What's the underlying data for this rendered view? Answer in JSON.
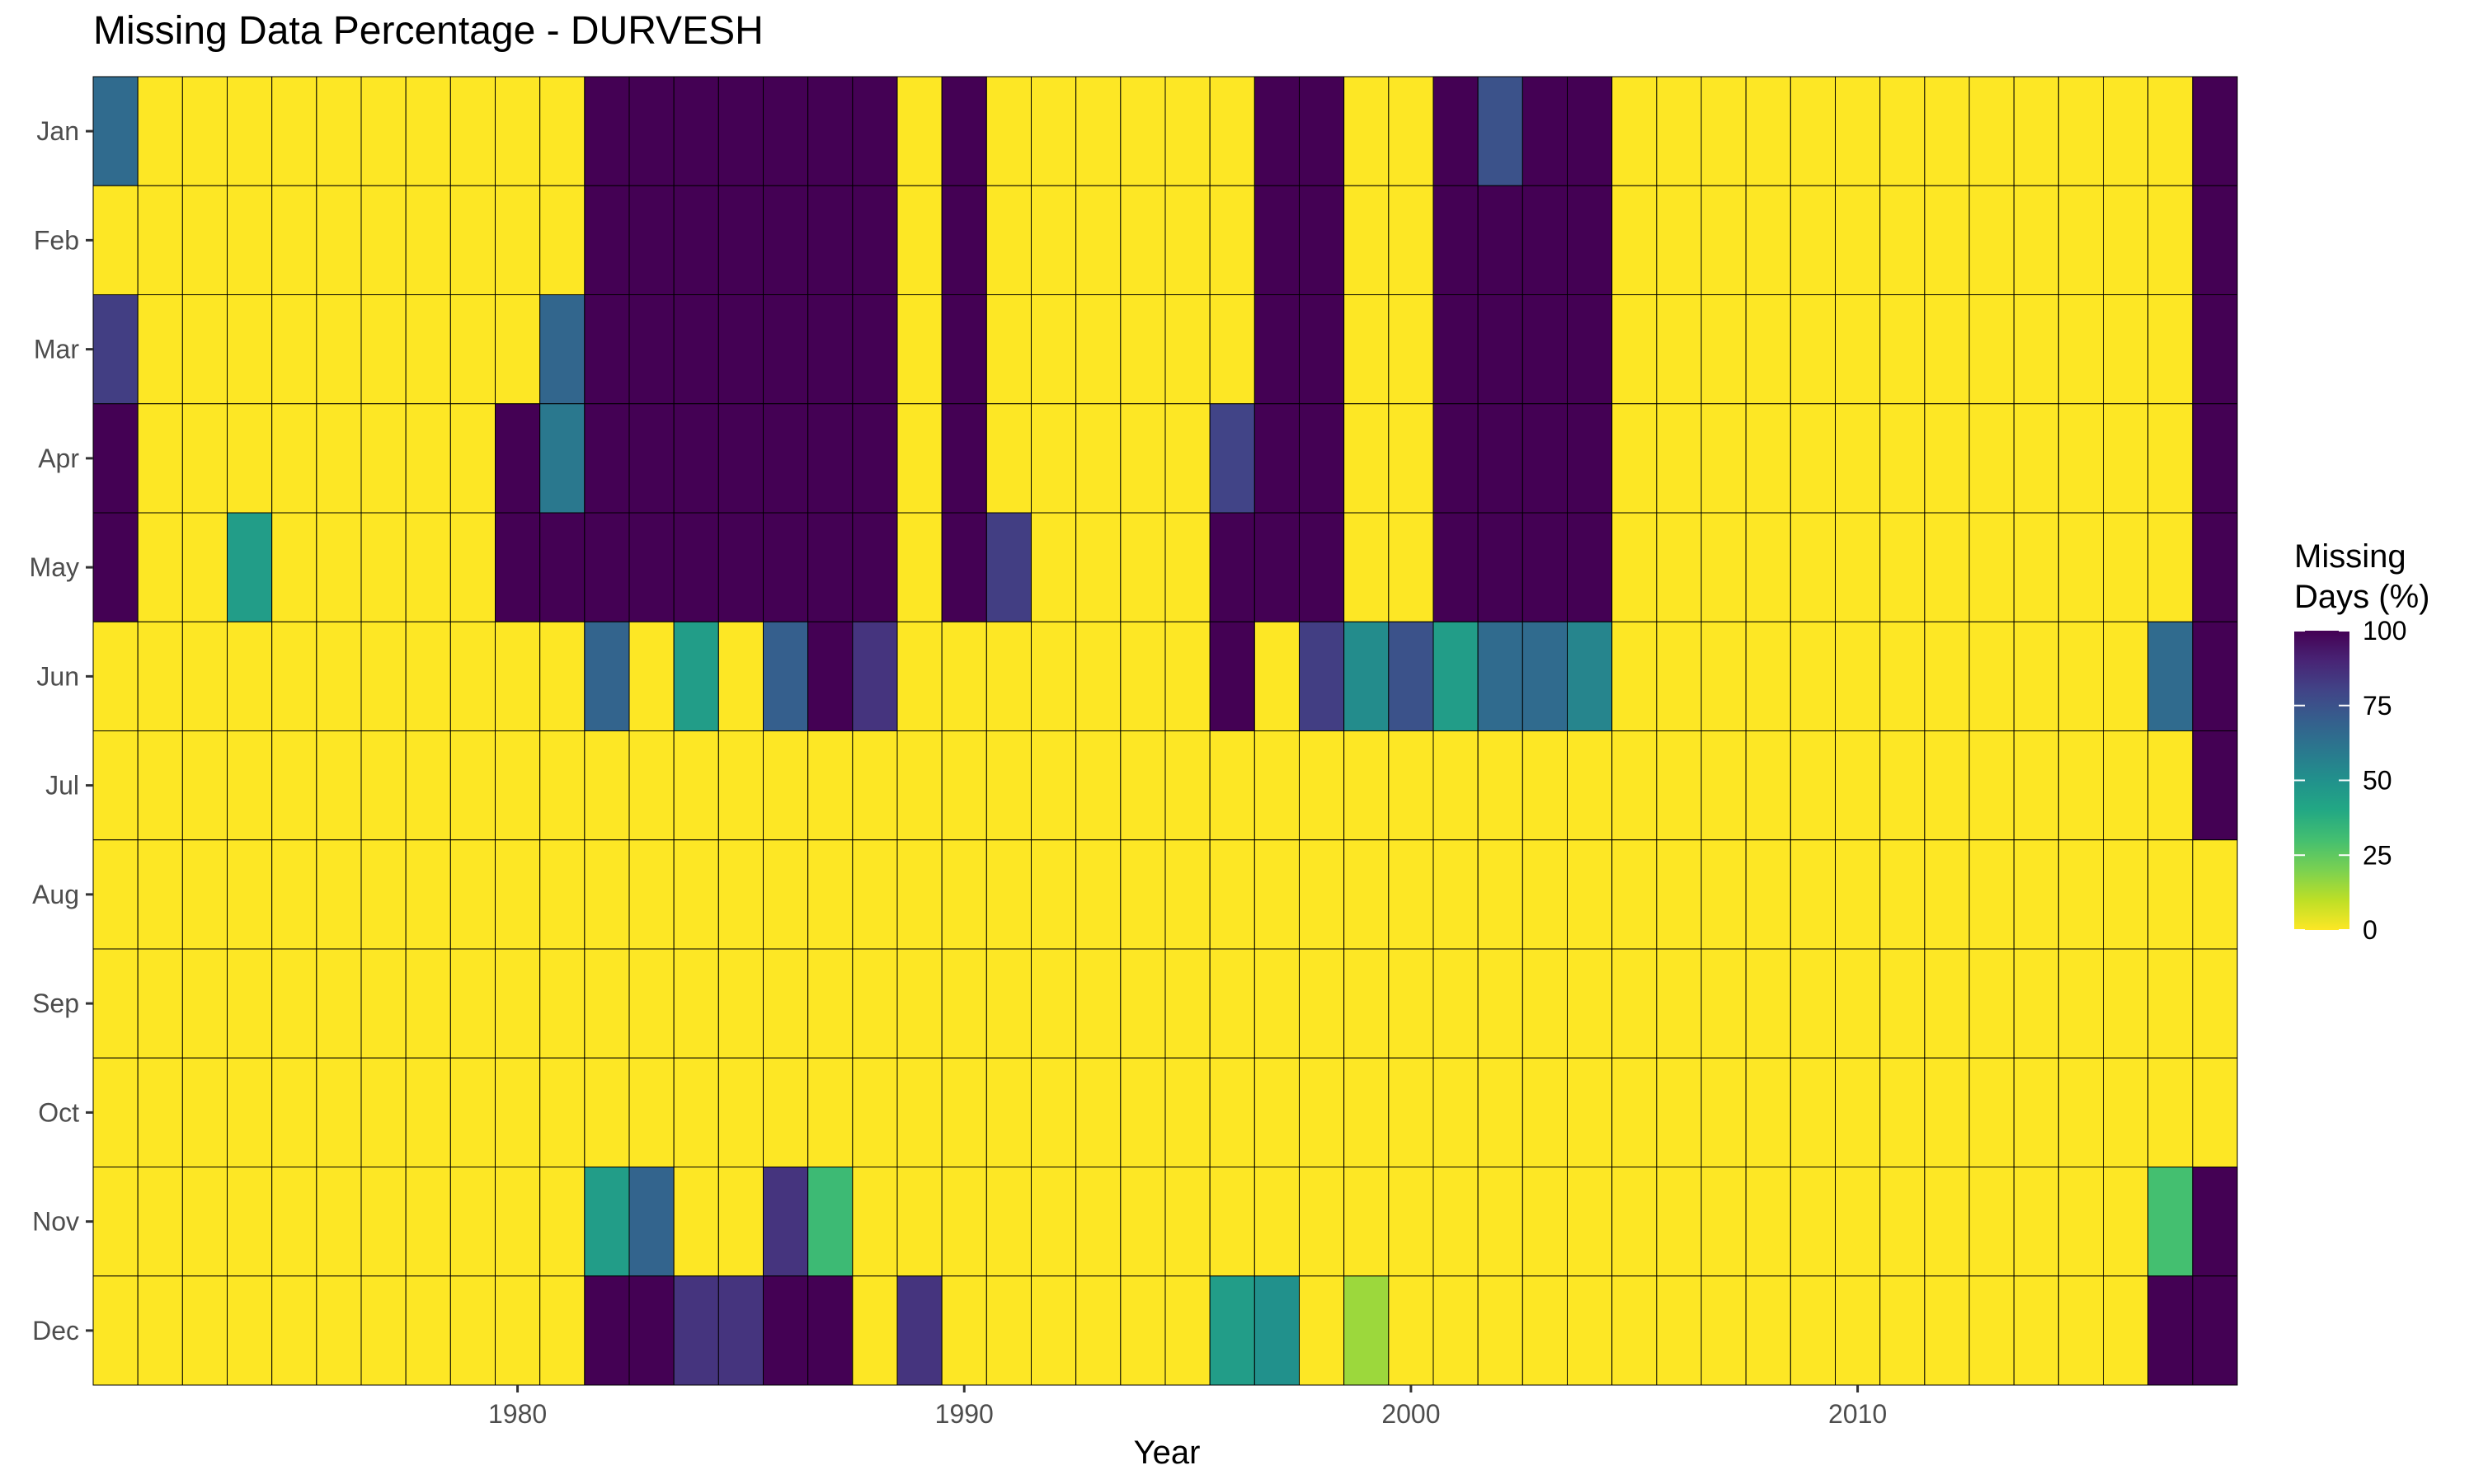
{
  "chart_data": {
    "type": "heatmap",
    "title": "Missing Data Percentage - DURVESH",
    "xlabel": "Year",
    "ylabel": "",
    "x_first_year": 1971,
    "x_last_year": 2018,
    "x_ticks": [
      1980,
      1990,
      2000,
      2010
    ],
    "months": [
      "Jan",
      "Feb",
      "Mar",
      "Apr",
      "May",
      "Jun",
      "Jul",
      "Aug",
      "Sep",
      "Oct",
      "Nov",
      "Dec"
    ],
    "color_scale": "viridis (reversed)",
    "legend": {
      "title_lines": [
        "Missing",
        "Days (%)"
      ],
      "ticks": [
        0,
        25,
        50,
        75,
        100
      ],
      "range": [
        0,
        100
      ],
      "placement": "right"
    },
    "colors": {
      "low": "#fde725",
      "high": "#440154",
      "grid_line": "#000000"
    },
    "note_default_value": 0,
    "cells": [
      {
        "year": 1971,
        "month": "Jan",
        "value": 65
      },
      {
        "year": 1971,
        "month": "Mar",
        "value": 82
      },
      {
        "year": 1971,
        "month": "Apr",
        "value": 100
      },
      {
        "year": 1971,
        "month": "May",
        "value": 100
      },
      {
        "year": 1974,
        "month": "May",
        "value": 45
      },
      {
        "year": 1980,
        "month": "Apr",
        "value": 100
      },
      {
        "year": 1980,
        "month": "May",
        "value": 100
      },
      {
        "year": 1981,
        "month": "Mar",
        "value": 67
      },
      {
        "year": 1981,
        "month": "Apr",
        "value": 60
      },
      {
        "year": 1981,
        "month": "May",
        "value": 100
      },
      {
        "year": 1982,
        "month": "Jan",
        "value": 100
      },
      {
        "year": 1982,
        "month": "Feb",
        "value": 100
      },
      {
        "year": 1982,
        "month": "Mar",
        "value": 100
      },
      {
        "year": 1982,
        "month": "Apr",
        "value": 100
      },
      {
        "year": 1982,
        "month": "May",
        "value": 100
      },
      {
        "year": 1982,
        "month": "Jun",
        "value": 68
      },
      {
        "year": 1982,
        "month": "Nov",
        "value": 45
      },
      {
        "year": 1982,
        "month": "Dec",
        "value": 100
      },
      {
        "year": 1983,
        "month": "Jan",
        "value": 100
      },
      {
        "year": 1983,
        "month": "Feb",
        "value": 100
      },
      {
        "year": 1983,
        "month": "Mar",
        "value": 100
      },
      {
        "year": 1983,
        "month": "Apr",
        "value": 100
      },
      {
        "year": 1983,
        "month": "May",
        "value": 100
      },
      {
        "year": 1983,
        "month": "Nov",
        "value": 68
      },
      {
        "year": 1983,
        "month": "Dec",
        "value": 100
      },
      {
        "year": 1984,
        "month": "Jan",
        "value": 100
      },
      {
        "year": 1984,
        "month": "Feb",
        "value": 100
      },
      {
        "year": 1984,
        "month": "Mar",
        "value": 100
      },
      {
        "year": 1984,
        "month": "Apr",
        "value": 100
      },
      {
        "year": 1984,
        "month": "May",
        "value": 100
      },
      {
        "year": 1984,
        "month": "Jun",
        "value": 45
      },
      {
        "year": 1984,
        "month": "Dec",
        "value": 85
      },
      {
        "year": 1985,
        "month": "Jan",
        "value": 100
      },
      {
        "year": 1985,
        "month": "Feb",
        "value": 100
      },
      {
        "year": 1985,
        "month": "Mar",
        "value": 100
      },
      {
        "year": 1985,
        "month": "Apr",
        "value": 100
      },
      {
        "year": 1985,
        "month": "May",
        "value": 100
      },
      {
        "year": 1985,
        "month": "Dec",
        "value": 85
      },
      {
        "year": 1986,
        "month": "Jan",
        "value": 100
      },
      {
        "year": 1986,
        "month": "Feb",
        "value": 100
      },
      {
        "year": 1986,
        "month": "Mar",
        "value": 100
      },
      {
        "year": 1986,
        "month": "Apr",
        "value": 100
      },
      {
        "year": 1986,
        "month": "May",
        "value": 100
      },
      {
        "year": 1986,
        "month": "Jun",
        "value": 70
      },
      {
        "year": 1986,
        "month": "Nov",
        "value": 85
      },
      {
        "year": 1986,
        "month": "Dec",
        "value": 100
      },
      {
        "year": 1987,
        "month": "Jan",
        "value": 100
      },
      {
        "year": 1987,
        "month": "Feb",
        "value": 100
      },
      {
        "year": 1987,
        "month": "Mar",
        "value": 100
      },
      {
        "year": 1987,
        "month": "Apr",
        "value": 100
      },
      {
        "year": 1987,
        "month": "May",
        "value": 100
      },
      {
        "year": 1987,
        "month": "Jun",
        "value": 100
      },
      {
        "year": 1987,
        "month": "Nov",
        "value": 32
      },
      {
        "year": 1987,
        "month": "Dec",
        "value": 100
      },
      {
        "year": 1988,
        "month": "Jan",
        "value": 100
      },
      {
        "year": 1988,
        "month": "Feb",
        "value": 100
      },
      {
        "year": 1988,
        "month": "Mar",
        "value": 100
      },
      {
        "year": 1988,
        "month": "Apr",
        "value": 100
      },
      {
        "year": 1988,
        "month": "May",
        "value": 100
      },
      {
        "year": 1988,
        "month": "Jun",
        "value": 85
      },
      {
        "year": 1989,
        "month": "Dec",
        "value": 85
      },
      {
        "year": 1990,
        "month": "Jan",
        "value": 100
      },
      {
        "year": 1990,
        "month": "Feb",
        "value": 100
      },
      {
        "year": 1990,
        "month": "Mar",
        "value": 100
      },
      {
        "year": 1990,
        "month": "Apr",
        "value": 100
      },
      {
        "year": 1990,
        "month": "May",
        "value": 100
      },
      {
        "year": 1991,
        "month": "May",
        "value": 82
      },
      {
        "year": 1996,
        "month": "Apr",
        "value": 80
      },
      {
        "year": 1996,
        "month": "May",
        "value": 100
      },
      {
        "year": 1996,
        "month": "Jun",
        "value": 100
      },
      {
        "year": 1996,
        "month": "Dec",
        "value": 45
      },
      {
        "year": 1997,
        "month": "Jan",
        "value": 100
      },
      {
        "year": 1997,
        "month": "Feb",
        "value": 100
      },
      {
        "year": 1997,
        "month": "Mar",
        "value": 100
      },
      {
        "year": 1997,
        "month": "Apr",
        "value": 100
      },
      {
        "year": 1997,
        "month": "May",
        "value": 100
      },
      {
        "year": 1997,
        "month": "Dec",
        "value": 50
      },
      {
        "year": 1998,
        "month": "Jan",
        "value": 100
      },
      {
        "year": 1998,
        "month": "Feb",
        "value": 100
      },
      {
        "year": 1998,
        "month": "Mar",
        "value": 100
      },
      {
        "year": 1998,
        "month": "Apr",
        "value": 100
      },
      {
        "year": 1998,
        "month": "May",
        "value": 100
      },
      {
        "year": 1998,
        "month": "Jun",
        "value": 82
      },
      {
        "year": 1999,
        "month": "Jun",
        "value": 52
      },
      {
        "year": 1999,
        "month": "Dec",
        "value": 15
      },
      {
        "year": 2000,
        "month": "Jun",
        "value": 75
      },
      {
        "year": 2001,
        "month": "Jan",
        "value": 100
      },
      {
        "year": 2001,
        "month": "Feb",
        "value": 100
      },
      {
        "year": 2001,
        "month": "Mar",
        "value": 100
      },
      {
        "year": 2001,
        "month": "Apr",
        "value": 100
      },
      {
        "year": 2001,
        "month": "May",
        "value": 100
      },
      {
        "year": 2001,
        "month": "Jun",
        "value": 45
      },
      {
        "year": 2002,
        "month": "Jan",
        "value": 75
      },
      {
        "year": 2002,
        "month": "Feb",
        "value": 100
      },
      {
        "year": 2002,
        "month": "Mar",
        "value": 100
      },
      {
        "year": 2002,
        "month": "Apr",
        "value": 100
      },
      {
        "year": 2002,
        "month": "May",
        "value": 100
      },
      {
        "year": 2002,
        "month": "Jun",
        "value": 65
      },
      {
        "year": 2003,
        "month": "Jan",
        "value": 100
      },
      {
        "year": 2003,
        "month": "Feb",
        "value": 100
      },
      {
        "year": 2003,
        "month": "Mar",
        "value": 100
      },
      {
        "year": 2003,
        "month": "Apr",
        "value": 100
      },
      {
        "year": 2003,
        "month": "May",
        "value": 100
      },
      {
        "year": 2003,
        "month": "Jun",
        "value": 65
      },
      {
        "year": 2004,
        "month": "Jan",
        "value": 100
      },
      {
        "year": 2004,
        "month": "Feb",
        "value": 100
      },
      {
        "year": 2004,
        "month": "Mar",
        "value": 100
      },
      {
        "year": 2004,
        "month": "Apr",
        "value": 100
      },
      {
        "year": 2004,
        "month": "May",
        "value": 100
      },
      {
        "year": 2004,
        "month": "Jun",
        "value": 55
      },
      {
        "year": 2017,
        "month": "Jun",
        "value": 65
      },
      {
        "year": 2017,
        "month": "Nov",
        "value": 30
      },
      {
        "year": 2017,
        "month": "Dec",
        "value": 100
      },
      {
        "year": 2018,
        "month": "Jan",
        "value": 100
      },
      {
        "year": 2018,
        "month": "Feb",
        "value": 100
      },
      {
        "year": 2018,
        "month": "Mar",
        "value": 100
      },
      {
        "year": 2018,
        "month": "Apr",
        "value": 100
      },
      {
        "year": 2018,
        "month": "May",
        "value": 100
      },
      {
        "year": 2018,
        "month": "Jun",
        "value": 100
      },
      {
        "year": 2018,
        "month": "Jul",
        "value": 100
      },
      {
        "year": 2018,
        "month": "Nov",
        "value": 100
      },
      {
        "year": 2018,
        "month": "Dec",
        "value": 100
      }
    ]
  }
}
